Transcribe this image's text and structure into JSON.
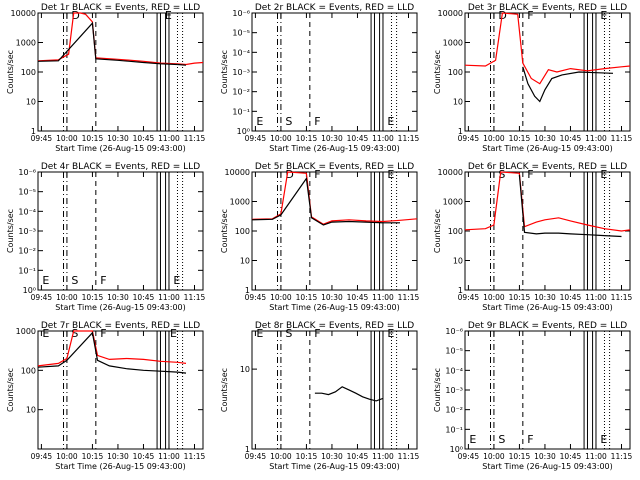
{
  "colors": {
    "events": "#000000",
    "lld": "#ff0000",
    "axis": "#000000"
  },
  "chart_data": [
    {
      "type": "line",
      "title": "Det 1r BLACK = Events, RED = LLD",
      "xlabel": "Start Time (26-Aug-15 09:43:00)",
      "ylabel": "Counts/sec",
      "x_ticks": [
        "09:45",
        "10:00",
        "10:15",
        "10:30",
        "10:45",
        "11:00",
        "11:15"
      ],
      "y_ticks": [
        "1",
        "10",
        "100",
        "1000",
        "10000"
      ],
      "ylog": true,
      "ylim": [
        1,
        10000
      ],
      "markers": [
        {
          "t": "10:02",
          "label": "D"
        },
        {
          "t": "10:57",
          "label": "E"
        }
      ],
      "series": [
        {
          "name": "LLD",
          "x": [
            "09:43",
            "09:55",
            "10:01",
            "10:04",
            "10:08",
            "10:11",
            "10:15",
            "10:17",
            "10:30",
            "10:45",
            "10:55",
            "11:05",
            "11:10",
            "11:15",
            "11:20"
          ],
          "y": [
            240,
            260,
            400,
            10000,
            10000,
            9000,
            5000,
            300,
            270,
            230,
            200,
            190,
            180,
            200,
            210
          ]
        },
        {
          "name": "Events",
          "x": [
            "09:43",
            "09:55",
            "10:15",
            "10:17",
            "10:30",
            "10:45",
            "10:55",
            "11:05",
            "11:10"
          ],
          "y": [
            230,
            240,
            4500,
            280,
            250,
            210,
            190,
            180,
            170
          ]
        }
      ]
    },
    {
      "type": "line",
      "title": "Det 2r BLACK = Events, RED = LLD",
      "xlabel": "Start Time (26-Aug-15 09:43:00)",
      "ylabel": "Counts/sec",
      "x_ticks": [
        "09:45",
        "10:00",
        "10:15",
        "10:30",
        "10:45",
        "11:00",
        "11:15"
      ],
      "y_ticks": [
        "10⁰",
        "10⁻¹",
        "10⁻²",
        "10⁻³",
        "10⁻⁴",
        "10⁻⁵",
        "10⁻⁶"
      ],
      "ylog": true,
      "markers": [
        {
          "t": "09:45",
          "label": "E"
        },
        {
          "t": "10:02",
          "label": "S"
        },
        {
          "t": "10:19",
          "label": "F"
        },
        {
          "t": "11:02",
          "label": "E"
        }
      ],
      "series": []
    },
    {
      "type": "line",
      "title": "Det 3r BLACK = Events, RED = LLD",
      "xlabel": "Start Time (26-Aug-15 09:43:00)",
      "ylabel": "Counts/sec",
      "x_ticks": [
        "09:45",
        "10:00",
        "10:15",
        "10:30",
        "10:45",
        "11:00",
        "11:15"
      ],
      "y_ticks": [
        "1",
        "10",
        "100",
        "1000",
        "10000"
      ],
      "ylog": true,
      "ylim": [
        1,
        10000
      ],
      "markers": [
        {
          "t": "10:02",
          "label": "D"
        },
        {
          "t": "10:19",
          "label": "F"
        },
        {
          "t": "11:02",
          "label": "E"
        }
      ],
      "series": [
        {
          "name": "LLD",
          "x": [
            "09:43",
            "09:55",
            "10:01",
            "10:05",
            "10:10",
            "10:14",
            "10:17",
            "10:22",
            "10:27",
            "10:32",
            "10:37",
            "10:45",
            "10:55",
            "11:05",
            "11:15",
            "11:20"
          ],
          "y": [
            170,
            160,
            250,
            10000,
            9500,
            9000,
            200,
            60,
            40,
            120,
            100,
            130,
            110,
            130,
            150,
            160
          ]
        },
        {
          "name": "Events",
          "x": [
            "10:17",
            "10:20",
            "10:24",
            "10:27",
            "10:30",
            "10:34",
            "10:40",
            "10:50",
            "11:00",
            "11:10"
          ],
          "y": [
            150,
            40,
            15,
            10,
            25,
            60,
            80,
            100,
            95,
            90
          ]
        }
      ]
    },
    {
      "type": "line",
      "title": "Det 4r BLACK = Events, RED = LLD",
      "xlabel": "Start Time (26-Aug-15 09:43:00)",
      "ylabel": "Counts/sec",
      "x_ticks": [
        "09:45",
        "10:00",
        "10:15",
        "10:30",
        "10:45",
        "11:00",
        "11:15"
      ],
      "y_ticks": [
        "10⁰",
        "10⁻¹",
        "10⁻²",
        "10⁻³",
        "10⁻⁴",
        "10⁻⁵",
        "10⁻⁶"
      ],
      "ylog": true,
      "markers": [
        {
          "t": "09:45",
          "label": "E"
        },
        {
          "t": "10:02",
          "label": "S"
        },
        {
          "t": "10:19",
          "label": "F"
        },
        {
          "t": "11:02",
          "label": "E"
        }
      ],
      "series": []
    },
    {
      "type": "line",
      "title": "Det 5r BLACK = Events, RED = LLD",
      "xlabel": "Start Time (26-Aug-15 09:43:00)",
      "ylabel": "Counts/sec",
      "x_ticks": [
        "09:45",
        "10:00",
        "10:15",
        "10:30",
        "10:45",
        "11:00",
        "11:15"
      ],
      "y_ticks": [
        "1",
        "10",
        "100",
        "1000",
        "10000"
      ],
      "ylog": true,
      "ylim": [
        1,
        10000
      ],
      "markers": [
        {
          "t": "10:02",
          "label": "D"
        },
        {
          "t": "10:19",
          "label": "F"
        },
        {
          "t": "11:02",
          "label": "E"
        }
      ],
      "series": [
        {
          "name": "LLD",
          "x": [
            "09:43",
            "09:55",
            "10:00",
            "10:04",
            "10:10",
            "10:15",
            "10:18",
            "10:25",
            "10:30",
            "10:40",
            "10:50",
            "11:00",
            "11:10",
            "11:20"
          ],
          "y": [
            250,
            260,
            380,
            10000,
            9500,
            9000,
            300,
            170,
            220,
            240,
            220,
            210,
            230,
            260
          ]
        },
        {
          "name": "Events",
          "x": [
            "09:43",
            "09:55",
            "10:00",
            "10:15",
            "10:18",
            "10:25",
            "10:30",
            "10:40",
            "10:50",
            "11:00",
            "11:10"
          ],
          "y": [
            240,
            250,
            350,
            6000,
            280,
            160,
            200,
            210,
            200,
            190,
            190
          ]
        }
      ]
    },
    {
      "type": "line",
      "title": "Det 6r BLACK = Events, RED = LLD",
      "xlabel": "Start Time (26-Aug-15 09:43:00)",
      "ylabel": "Counts/sec",
      "x_ticks": [
        "09:45",
        "10:00",
        "10:15",
        "10:30",
        "10:45",
        "11:00",
        "11:15"
      ],
      "y_ticks": [
        "1",
        "10",
        "100",
        "1000",
        "10000"
      ],
      "ylog": true,
      "ylim": [
        1,
        10000
      ],
      "markers": [
        {
          "t": "10:02",
          "label": "S"
        },
        {
          "t": "10:19",
          "label": "F"
        },
        {
          "t": "11:02",
          "label": "E"
        }
      ],
      "series": [
        {
          "name": "LLD",
          "x": [
            "09:43",
            "09:55",
            "10:00",
            "10:04",
            "10:10",
            "10:15",
            "10:18",
            "10:25",
            "10:30",
            "10:38",
            "10:45",
            "10:55",
            "11:05",
            "11:15",
            "11:20"
          ],
          "y": [
            110,
            120,
            160,
            10000,
            9500,
            9000,
            140,
            200,
            240,
            280,
            220,
            160,
            120,
            100,
            110
          ]
        },
        {
          "name": "Events",
          "x": [
            "10:15",
            "10:18",
            "10:25",
            "10:30",
            "10:38",
            "10:45",
            "10:55",
            "11:05",
            "11:15"
          ],
          "y": [
            8000,
            90,
            80,
            85,
            85,
            80,
            75,
            70,
            65
          ]
        }
      ]
    },
    {
      "type": "line",
      "title": "Det 7r BLACK = Events, RED = LLD",
      "xlabel": "Start Time (26-Aug-15 09:43:00)",
      "ylabel": "Counts/sec",
      "x_ticks": [
        "09:45",
        "10:00",
        "10:15",
        "10:30",
        "10:45",
        "11:00",
        "11:15"
      ],
      "y_ticks": [
        "10",
        "100",
        "1000"
      ],
      "ylog": true,
      "ylim": [
        1,
        1000
      ],
      "markers": [
        {
          "t": "09:45",
          "label": "E"
        },
        {
          "t": "10:02",
          "label": "S"
        },
        {
          "t": "10:19",
          "label": "F"
        },
        {
          "t": "11:00",
          "label": "E"
        }
      ],
      "series": [
        {
          "name": "LLD",
          "x": [
            "09:43",
            "09:55",
            "10:00",
            "10:04",
            "10:10",
            "10:15",
            "10:18",
            "10:25",
            "10:35",
            "10:45",
            "10:55",
            "11:05",
            "11:10"
          ],
          "y": [
            130,
            150,
            200,
            1000,
            1000,
            1000,
            240,
            190,
            200,
            190,
            170,
            160,
            150
          ]
        },
        {
          "name": "Events",
          "x": [
            "09:43",
            "09:55",
            "10:00",
            "10:15",
            "10:18",
            "10:25",
            "10:35",
            "10:45",
            "10:55",
            "11:05",
            "11:10"
          ],
          "y": [
            120,
            130,
            180,
            900,
            180,
            130,
            110,
            100,
            95,
            90,
            85
          ]
        }
      ]
    },
    {
      "type": "line",
      "title": "Det 8r BLACK = Events, RED = LLD",
      "xlabel": "Start Time (26-Aug-15 09:43:00)",
      "ylabel": "Counts/sec",
      "x_ticks": [
        "09:45",
        "10:00",
        "10:15",
        "10:30",
        "10:45",
        "11:00",
        "11:15"
      ],
      "y_ticks": [
        "1",
        "10"
      ],
      "ylog": true,
      "ylim": [
        1,
        30
      ],
      "markers": [
        {
          "t": "09:45",
          "label": "E"
        },
        {
          "t": "10:02",
          "label": "S"
        },
        {
          "t": "10:19",
          "label": "F"
        },
        {
          "t": "11:02",
          "label": "E"
        }
      ],
      "series": [
        {
          "name": "Events",
          "x": [
            "10:20",
            "10:24",
            "10:28",
            "10:32",
            "10:36",
            "10:40",
            "10:44",
            "10:48",
            "10:52",
            "10:56",
            "11:00"
          ],
          "y": [
            5,
            5,
            4.8,
            5.2,
            6,
            5.5,
            5,
            4.5,
            4.2,
            4,
            4.3
          ]
        }
      ]
    },
    {
      "type": "line",
      "title": "Det 9r BLACK = Events, RED = LLD",
      "xlabel": "Start Time (26-Aug-15 09:43:00)",
      "ylabel": "Counts/sec",
      "x_ticks": [
        "09:45",
        "10:00",
        "10:15",
        "10:30",
        "10:45",
        "11:00",
        "11:15"
      ],
      "y_ticks": [
        "10⁰",
        "10⁻¹",
        "10⁻²",
        "10⁻³",
        "10⁻⁴",
        "10⁻⁵",
        "10⁻⁶"
      ],
      "ylog": true,
      "markers": [
        {
          "t": "09:45",
          "label": "E"
        },
        {
          "t": "10:02",
          "label": "S"
        },
        {
          "t": "10:19",
          "label": "F"
        },
        {
          "t": "11:02",
          "label": "E"
        }
      ],
      "series": []
    }
  ]
}
